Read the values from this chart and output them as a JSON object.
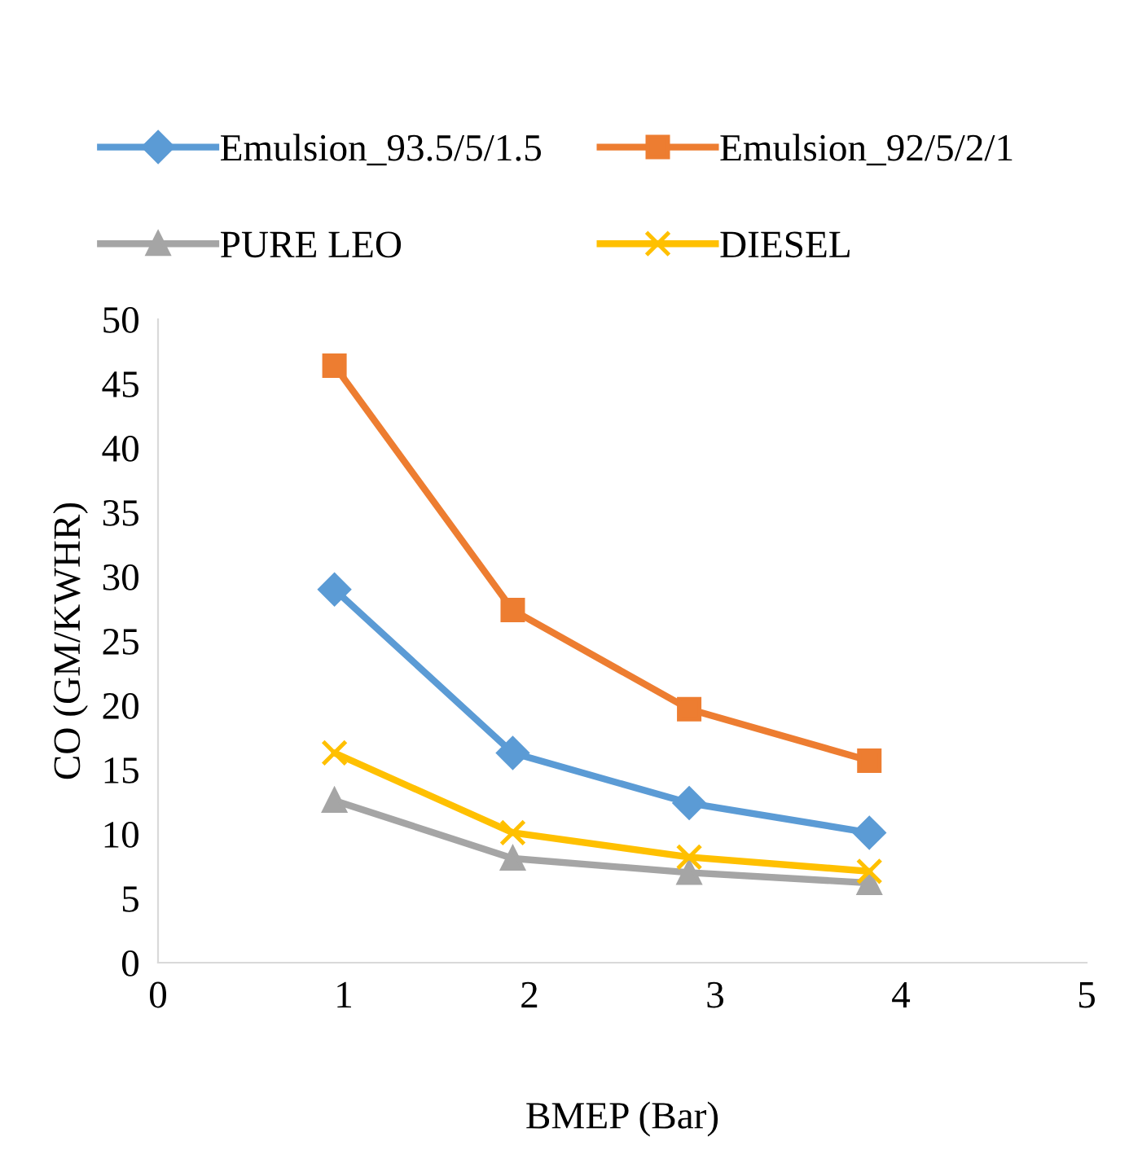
{
  "chart_data": {
    "type": "line",
    "xlabel": "BMEP (Bar)",
    "ylabel": "CO (GM/KWHR)",
    "x": [
      0.95,
      1.91,
      2.86,
      3.83
    ],
    "series": [
      {
        "name": "Emulsion_93.5/5/1.5",
        "color": "#5b9bd5",
        "marker": "diamond",
        "values": [
          29.0,
          16.3,
          12.4,
          10.1
        ]
      },
      {
        "name": "Emulsion_92/5/2/1",
        "color": "#ed7d31",
        "marker": "square",
        "values": [
          46.4,
          27.4,
          19.7,
          15.7
        ]
      },
      {
        "name": "PURE LEO",
        "color": "#a5a5a5",
        "marker": "triangle",
        "values": [
          12.6,
          8.1,
          7.0,
          6.2
        ]
      },
      {
        "name": "DIESEL",
        "color": "#ffc000",
        "marker": "cross",
        "values": [
          16.3,
          10.1,
          8.2,
          7.1
        ]
      }
    ],
    "xlim": [
      0,
      5
    ],
    "xticks": [
      0,
      1,
      2,
      3,
      4,
      5
    ],
    "ylim": [
      0,
      50
    ],
    "yticks": [
      0,
      5,
      10,
      15,
      20,
      25,
      30,
      35,
      40,
      45,
      50
    ],
    "grid": false,
    "legend": "top",
    "line_style": "solid"
  }
}
